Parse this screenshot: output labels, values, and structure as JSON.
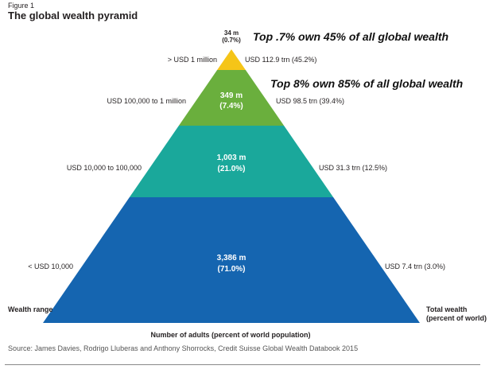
{
  "figure_label": "Figure 1",
  "title": "The global wealth pyramid",
  "chart_data": {
    "type": "pyramid",
    "title": "The global wealth pyramid",
    "tiers": [
      {
        "adults": "34 m",
        "share": "(0.7%)",
        "range": "> USD 1 million",
        "wealth": "USD 112.9 trn (45.2%)",
        "color": "#f5c518"
      },
      {
        "adults": "349 m",
        "share": "(7.4%)",
        "range": "USD 100,000 to 1 million",
        "wealth": "USD 98.5 trn (39.4%)",
        "color": "#6aaf3d"
      },
      {
        "adults": "1,003 m",
        "share": "(21.0%)",
        "range": "USD 10,000 to 100,000",
        "wealth": "USD 31.3 trn (12.5%)",
        "color": "#1aa89b"
      },
      {
        "adults": "3,386 m",
        "share": "(71.0%)",
        "range": "< USD 10,000",
        "wealth": "USD 7.4 trn (3.0%)",
        "color": "#1565b0"
      }
    ],
    "xlabel": "Number of adults (percent of world population)",
    "left_axis_label": "Wealth range",
    "right_axis_label": "Total wealth (percent of world)"
  },
  "annotations": [
    "Top .7% own 45% of all global wealth",
    "Top 8% own 85% of all global wealth"
  ],
  "source": "Source: James Davies, Rodrigo Lluberas and Anthony Shorrocks, Credit Suisse Global Wealth Databook 2015"
}
